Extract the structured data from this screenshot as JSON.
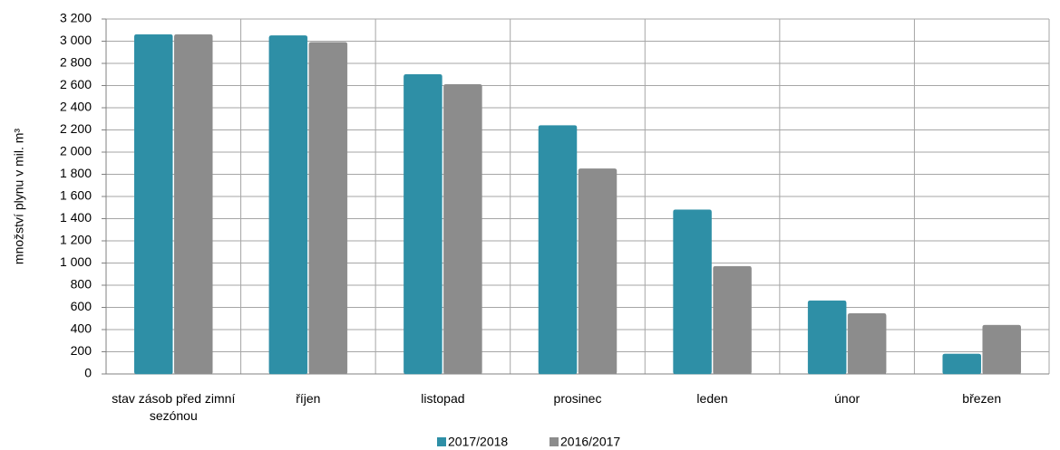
{
  "chart_data": {
    "type": "bar",
    "ylabel": "množství plynu v mil. m³",
    "categories": [
      "stav zásob před zimní sezónou",
      "říjen",
      "listopad",
      "prosinec",
      "leden",
      "únor",
      "březen"
    ],
    "series": [
      {
        "name": "2017/2018",
        "color": "#2e8fa6",
        "values": [
          3060,
          3050,
          2700,
          2240,
          1480,
          660,
          180
        ]
      },
      {
        "name": "2016/2017",
        "color": "#8c8c8c",
        "values": [
          3060,
          2990,
          2610,
          1850,
          970,
          545,
          440
        ]
      }
    ],
    "ylim": [
      0,
      3200
    ],
    "yticks": [
      0,
      200,
      400,
      600,
      800,
      {
        "value": 1000,
        "label": "1 000"
      },
      {
        "value": 1200,
        "label": "1 200"
      },
      {
        "value": 1400,
        "label": "1 400"
      },
      {
        "value": 1600,
        "label": "1 600"
      },
      {
        "value": 1800,
        "label": "1 800"
      },
      {
        "value": 2000,
        "label": "2 000"
      },
      {
        "value": 2200,
        "label": "2 200"
      },
      {
        "value": 2400,
        "label": "2 400"
      },
      {
        "value": 2600,
        "label": "2 600"
      },
      {
        "value": 2800,
        "label": "2 800"
      },
      {
        "value": 3000,
        "label": "3 000"
      },
      {
        "value": 3200,
        "label": "3 200"
      }
    ],
    "grid": true,
    "legend": "bottom"
  }
}
